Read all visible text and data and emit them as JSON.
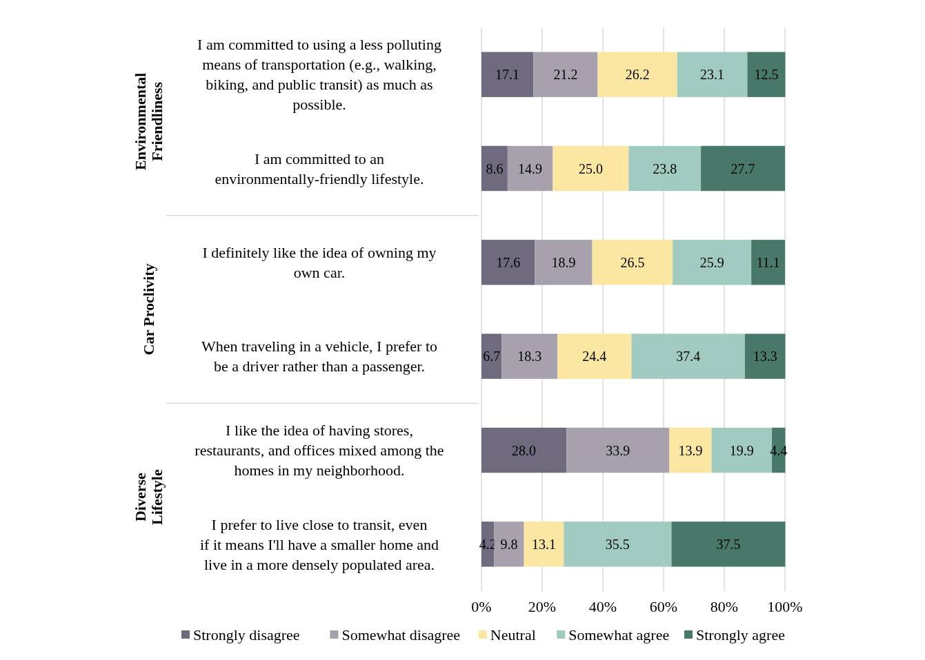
{
  "chart_data": {
    "type": "bar",
    "orientation": "horizontal",
    "stacked": true,
    "categories": [
      "I am committed to using a less polluting means of transportation (e.g., walking, biking, and public transit) as much as possible.",
      "I am committed to an environmentally-friendly lifestyle.",
      "I definitely like the idea of owning my own car.",
      "When traveling in a vehicle, I prefer to be a driver rather than a passenger.",
      "I like the idea of having stores, restaurants, and offices mixed among the homes in my neighborhood.",
      "I prefer to live close to transit, even if it means I'll have a smaller home and live in a more densely populated area."
    ],
    "series": [
      {
        "name": "Strongly disagree",
        "color": "#706a7f",
        "values": [
          17.1,
          8.6,
          17.6,
          6.7,
          28.0,
          4.2
        ],
        "value_labels": [
          "17.1",
          "8.6",
          "17.6",
          "6.7",
          "28.0",
          "4.2"
        ]
      },
      {
        "name": "Somewhat disagree",
        "color": "#a7a1ad",
        "values": [
          21.2,
          14.9,
          18.9,
          18.3,
          33.9,
          9.8
        ],
        "value_labels": [
          "21.2",
          "14.9",
          "18.9",
          "18.3",
          "33.9",
          "9.8"
        ]
      },
      {
        "name": "Neutral",
        "color": "#fbe6a2",
        "values": [
          26.2,
          25.0,
          26.5,
          24.4,
          13.9,
          13.1
        ],
        "value_labels": [
          "26.2",
          "25.0",
          "26.5",
          "24.4",
          "13.9",
          "13.1"
        ]
      },
      {
        "name": "Somewhat agree",
        "color": "#a1cbc0",
        "values": [
          23.1,
          23.8,
          25.9,
          37.4,
          19.9,
          35.5
        ],
        "value_labels": [
          "23.1",
          "23.8",
          "25.9",
          "37.4",
          "19.9",
          "35.5"
        ]
      },
      {
        "name": "Strongly agree",
        "color": "#47786a",
        "values": [
          12.5,
          27.7,
          11.1,
          13.3,
          4.4,
          37.5
        ],
        "value_labels": [
          "12.5",
          "27.7",
          "11.1",
          "13.3",
          "4.4",
          "37.5"
        ]
      }
    ],
    "xlim": [
      0,
      100
    ],
    "xticks": [
      {
        "value": 0,
        "label": "0%"
      },
      {
        "value": 20,
        "label": "20%"
      },
      {
        "value": 40,
        "label": "40%"
      },
      {
        "value": 60,
        "label": "60%"
      },
      {
        "value": 80,
        "label": "80%"
      },
      {
        "value": 100,
        "label": "100%"
      }
    ],
    "grid": "x",
    "legend": "bottom",
    "annotations": [
      "Environmental Friendliness",
      "Car Proclivity",
      "Diverse Lifestyle"
    ]
  }
}
